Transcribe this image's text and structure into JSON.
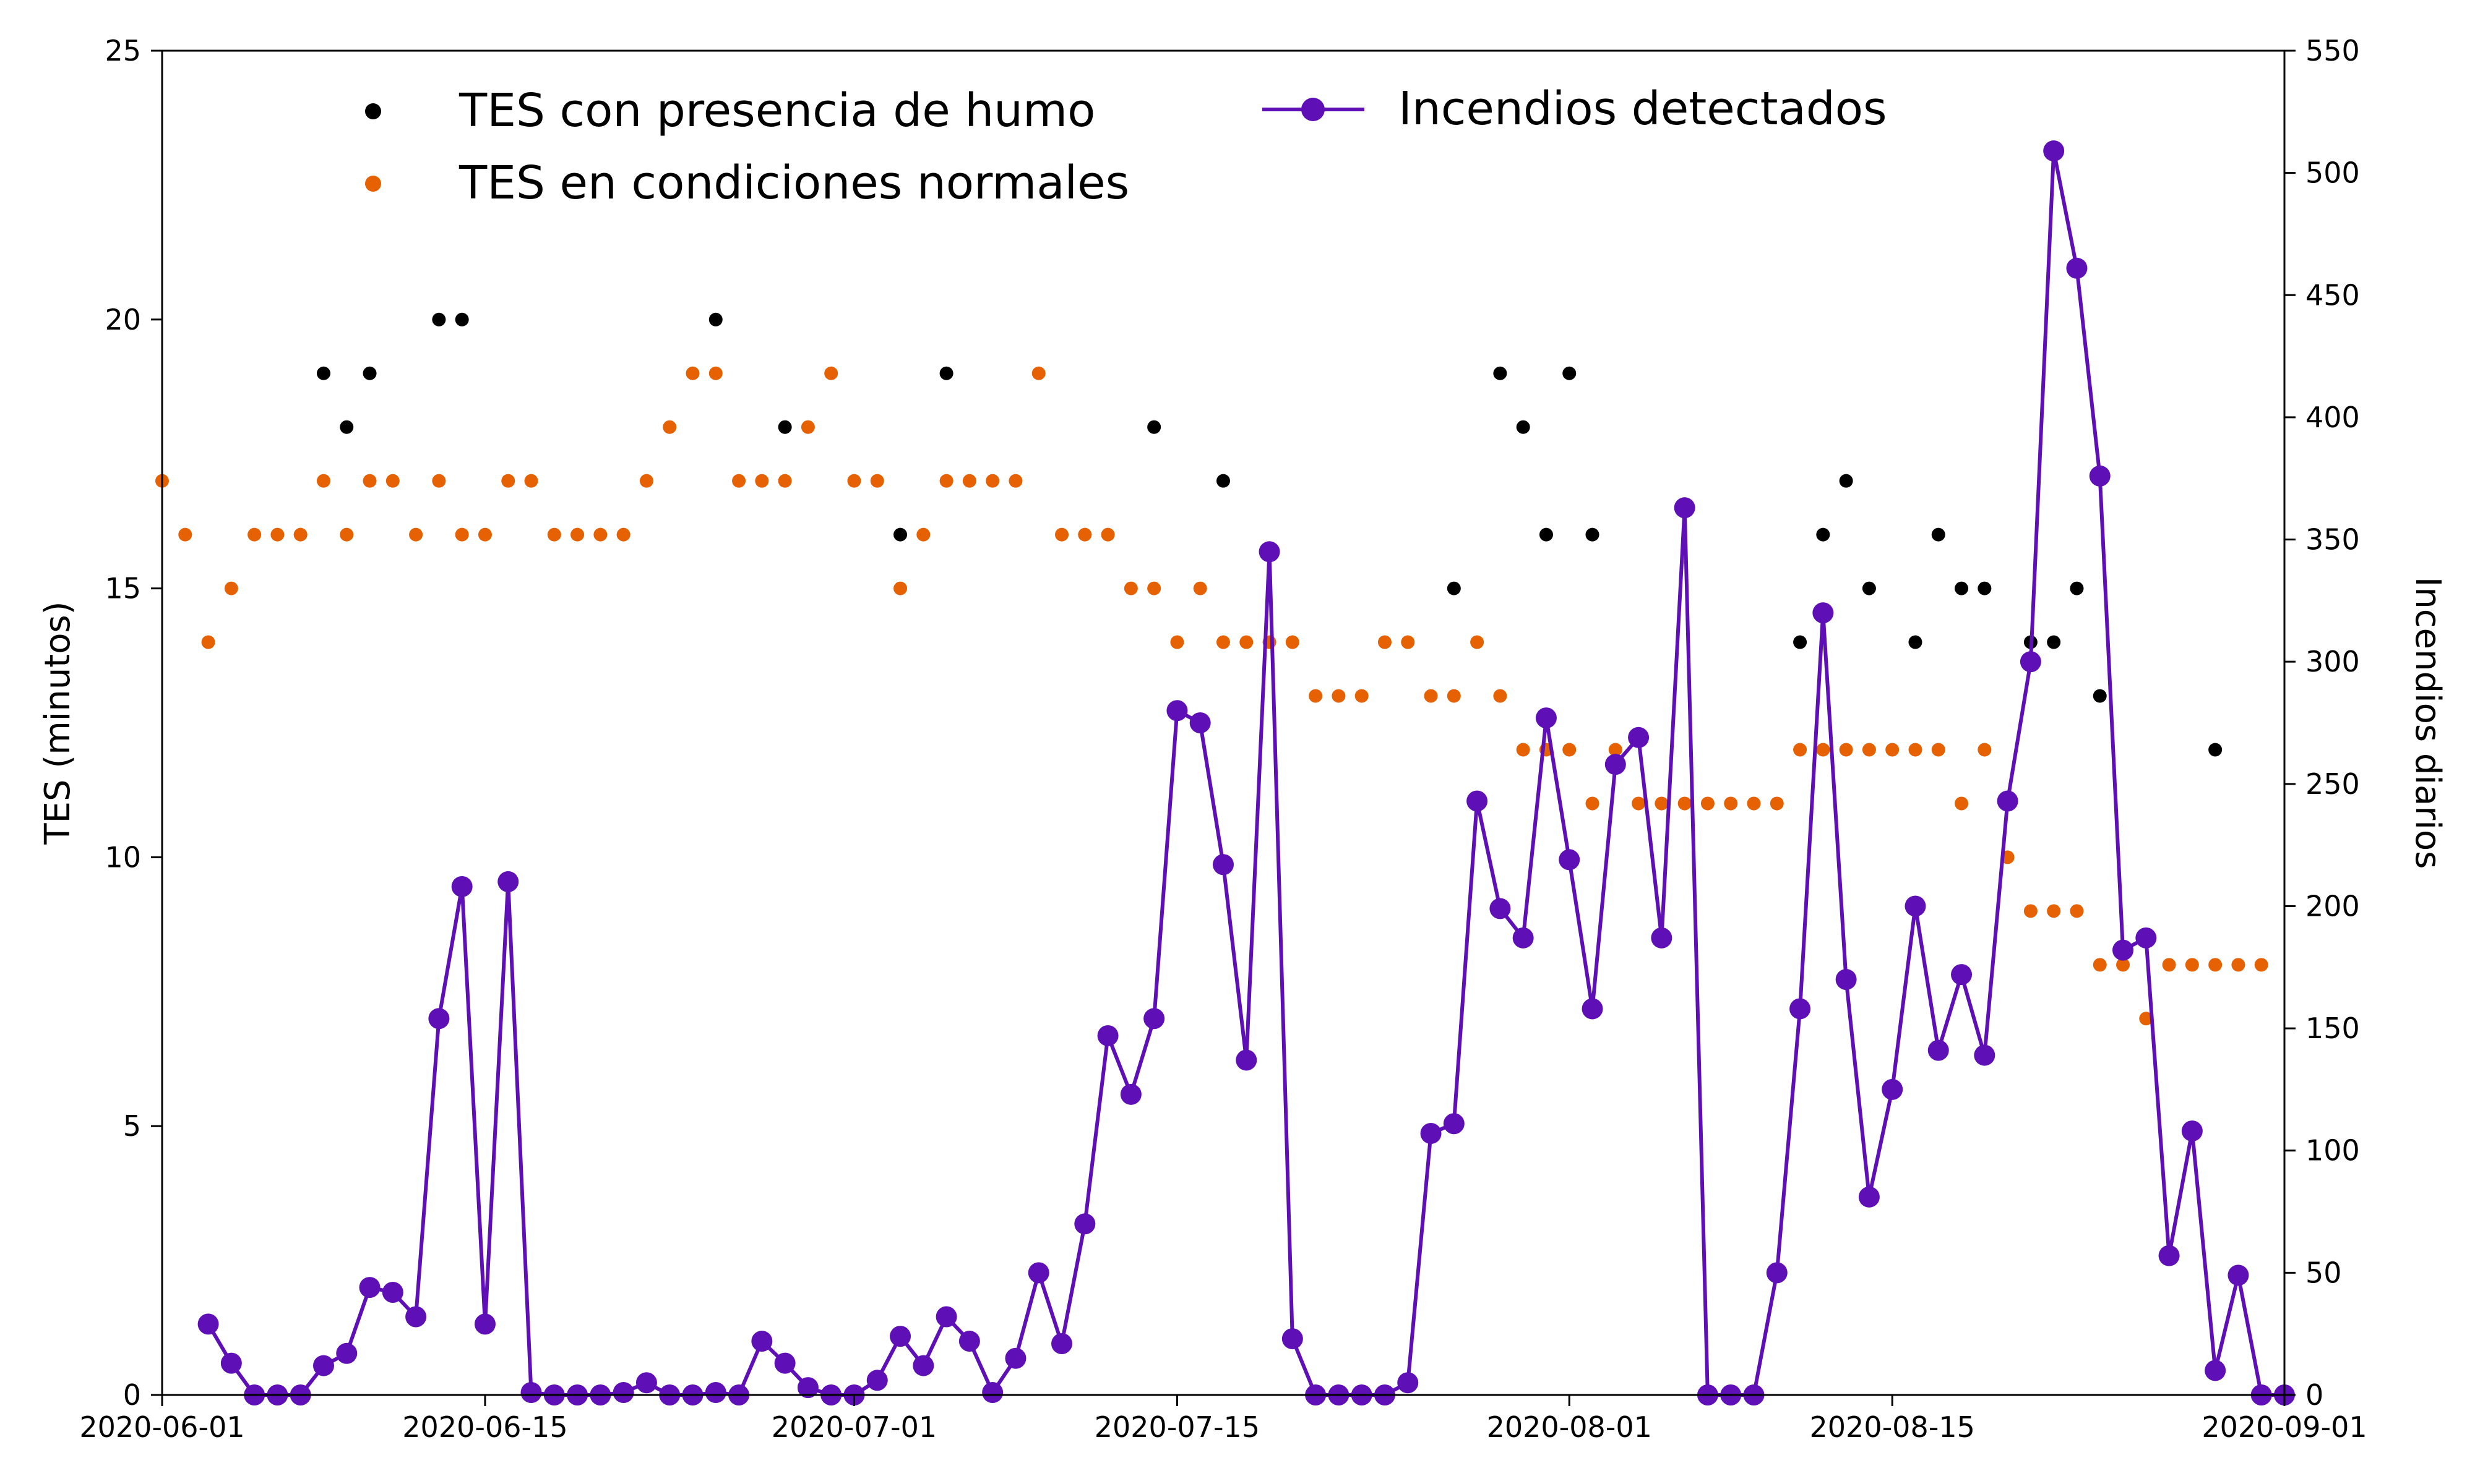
{
  "chart_data": {
    "type": "scatter+line",
    "title": "",
    "x_axis": {
      "type": "date",
      "range": [
        "2020-06-01",
        "2020-09-01"
      ],
      "ticks": [
        "2020-06-01",
        "2020-06-15",
        "2020-07-01",
        "2020-07-15",
        "2020-08-01",
        "2020-08-15",
        "2020-09-01"
      ]
    },
    "y_left": {
      "label": "TES (minutos)",
      "range": [
        0,
        25
      ],
      "ticks": [
        0,
        5,
        10,
        15,
        20,
        25
      ]
    },
    "y_right": {
      "label": "Incendios diarios",
      "range": [
        0,
        550
      ],
      "ticks": [
        0,
        50,
        100,
        150,
        200,
        250,
        300,
        350,
        400,
        450,
        500,
        550
      ]
    },
    "grid": false,
    "legend_position": "top",
    "series": [
      {
        "name": "TES con presencia de humo",
        "kind": "scatter",
        "axis": "left",
        "color": "#000000",
        "points": [
          [
            "2020-06-08",
            19
          ],
          [
            "2020-06-09",
            18
          ],
          [
            "2020-06-10",
            19
          ],
          [
            "2020-06-13",
            20
          ],
          [
            "2020-06-14",
            20
          ],
          [
            "2020-06-25",
            20
          ],
          [
            "2020-06-28",
            18
          ],
          [
            "2020-07-03",
            16
          ],
          [
            "2020-07-05",
            19
          ],
          [
            "2020-07-14",
            18
          ],
          [
            "2020-07-17",
            17
          ],
          [
            "2020-07-27",
            15
          ],
          [
            "2020-07-29",
            19
          ],
          [
            "2020-07-30",
            18
          ],
          [
            "2020-07-31",
            16
          ],
          [
            "2020-08-01",
            19
          ],
          [
            "2020-08-02",
            16
          ],
          [
            "2020-08-11",
            14
          ],
          [
            "2020-08-12",
            16
          ],
          [
            "2020-08-13",
            17
          ],
          [
            "2020-08-14",
            15
          ],
          [
            "2020-08-16",
            14
          ],
          [
            "2020-08-17",
            16
          ],
          [
            "2020-08-18",
            15
          ],
          [
            "2020-08-19",
            15
          ],
          [
            "2020-08-21",
            14
          ],
          [
            "2020-08-22",
            14
          ],
          [
            "2020-08-23",
            15
          ],
          [
            "2020-08-24",
            13
          ],
          [
            "2020-08-29",
            12
          ]
        ]
      },
      {
        "name": "TES en condiciones normales",
        "kind": "scatter",
        "axis": "left",
        "color": "#e66101",
        "points": [
          [
            "2020-06-01",
            17
          ],
          [
            "2020-06-02",
            16
          ],
          [
            "2020-06-03",
            14
          ],
          [
            "2020-06-04",
            15
          ],
          [
            "2020-06-05",
            16
          ],
          [
            "2020-06-06",
            16
          ],
          [
            "2020-06-07",
            16
          ],
          [
            "2020-06-08",
            17
          ],
          [
            "2020-06-09",
            16
          ],
          [
            "2020-06-10",
            17
          ],
          [
            "2020-06-11",
            17
          ],
          [
            "2020-06-12",
            16
          ],
          [
            "2020-06-13",
            17
          ],
          [
            "2020-06-14",
            16
          ],
          [
            "2020-06-15",
            16
          ],
          [
            "2020-06-16",
            17
          ],
          [
            "2020-06-17",
            17
          ],
          [
            "2020-06-18",
            16
          ],
          [
            "2020-06-19",
            16
          ],
          [
            "2020-06-20",
            16
          ],
          [
            "2020-06-21",
            16
          ],
          [
            "2020-06-22",
            17
          ],
          [
            "2020-06-23",
            18
          ],
          [
            "2020-06-24",
            19
          ],
          [
            "2020-06-25",
            19
          ],
          [
            "2020-06-26",
            17
          ],
          [
            "2020-06-27",
            17
          ],
          [
            "2020-06-28",
            17
          ],
          [
            "2020-06-29",
            18
          ],
          [
            "2020-06-30",
            19
          ],
          [
            "2020-07-01",
            17
          ],
          [
            "2020-07-02",
            17
          ],
          [
            "2020-07-03",
            15
          ],
          [
            "2020-07-04",
            16
          ],
          [
            "2020-07-05",
            17
          ],
          [
            "2020-07-06",
            17
          ],
          [
            "2020-07-07",
            17
          ],
          [
            "2020-07-08",
            17
          ],
          [
            "2020-07-09",
            19
          ],
          [
            "2020-07-10",
            16
          ],
          [
            "2020-07-11",
            16
          ],
          [
            "2020-07-12",
            16
          ],
          [
            "2020-07-13",
            15
          ],
          [
            "2020-07-14",
            15
          ],
          [
            "2020-07-15",
            14
          ],
          [
            "2020-07-16",
            15
          ],
          [
            "2020-07-17",
            14
          ],
          [
            "2020-07-18",
            14
          ],
          [
            "2020-07-19",
            14
          ],
          [
            "2020-07-20",
            14
          ],
          [
            "2020-07-21",
            13
          ],
          [
            "2020-07-22",
            13
          ],
          [
            "2020-07-23",
            13
          ],
          [
            "2020-07-24",
            14
          ],
          [
            "2020-07-25",
            14
          ],
          [
            "2020-07-26",
            13
          ],
          [
            "2020-07-27",
            13
          ],
          [
            "2020-07-28",
            14
          ],
          [
            "2020-07-29",
            13
          ],
          [
            "2020-07-30",
            12
          ],
          [
            "2020-07-31",
            12
          ],
          [
            "2020-08-01",
            12
          ],
          [
            "2020-08-02",
            11
          ],
          [
            "2020-08-03",
            12
          ],
          [
            "2020-08-04",
            11
          ],
          [
            "2020-08-05",
            11
          ],
          [
            "2020-08-06",
            11
          ],
          [
            "2020-08-07",
            11
          ],
          [
            "2020-08-08",
            11
          ],
          [
            "2020-08-09",
            11
          ],
          [
            "2020-08-10",
            11
          ],
          [
            "2020-08-11",
            12
          ],
          [
            "2020-08-12",
            12
          ],
          [
            "2020-08-13",
            12
          ],
          [
            "2020-08-14",
            12
          ],
          [
            "2020-08-15",
            12
          ],
          [
            "2020-08-16",
            12
          ],
          [
            "2020-08-17",
            12
          ],
          [
            "2020-08-18",
            11
          ],
          [
            "2020-08-19",
            12
          ],
          [
            "2020-08-20",
            10
          ],
          [
            "2020-08-21",
            9
          ],
          [
            "2020-08-22",
            9
          ],
          [
            "2020-08-23",
            9
          ],
          [
            "2020-08-24",
            8
          ],
          [
            "2020-08-25",
            8
          ],
          [
            "2020-08-26",
            7
          ],
          [
            "2020-08-27",
            8
          ],
          [
            "2020-08-28",
            8
          ],
          [
            "2020-08-29",
            8
          ],
          [
            "2020-08-30",
            8
          ],
          [
            "2020-08-31",
            8
          ]
        ]
      },
      {
        "name": "Incendios detectados",
        "kind": "line",
        "axis": "right",
        "color": "#5e0fb6",
        "points": [
          [
            "2020-06-03",
            29
          ],
          [
            "2020-06-04",
            13
          ],
          [
            "2020-06-05",
            0
          ],
          [
            "2020-06-06",
            0
          ],
          [
            "2020-06-07",
            0
          ],
          [
            "2020-06-08",
            12
          ],
          [
            "2020-06-09",
            17
          ],
          [
            "2020-06-10",
            44
          ],
          [
            "2020-06-11",
            42
          ],
          [
            "2020-06-12",
            32
          ],
          [
            "2020-06-13",
            154
          ],
          [
            "2020-06-14",
            208
          ],
          [
            "2020-06-15",
            29
          ],
          [
            "2020-06-16",
            210
          ],
          [
            "2020-06-17",
            1
          ],
          [
            "2020-06-18",
            0
          ],
          [
            "2020-06-19",
            0
          ],
          [
            "2020-06-20",
            0
          ],
          [
            "2020-06-21",
            1
          ],
          [
            "2020-06-22",
            5
          ],
          [
            "2020-06-23",
            0
          ],
          [
            "2020-06-24",
            0
          ],
          [
            "2020-06-25",
            1
          ],
          [
            "2020-06-26",
            0
          ],
          [
            "2020-06-27",
            22
          ],
          [
            "2020-06-28",
            13
          ],
          [
            "2020-06-29",
            3
          ],
          [
            "2020-06-30",
            0
          ],
          [
            "2020-07-01",
            0
          ],
          [
            "2020-07-02",
            6
          ],
          [
            "2020-07-03",
            24
          ],
          [
            "2020-07-04",
            12
          ],
          [
            "2020-07-05",
            32
          ],
          [
            "2020-07-06",
            22
          ],
          [
            "2020-07-07",
            1
          ],
          [
            "2020-07-08",
            15
          ],
          [
            "2020-07-09",
            50
          ],
          [
            "2020-07-10",
            21
          ],
          [
            "2020-07-11",
            70
          ],
          [
            "2020-07-12",
            147
          ],
          [
            "2020-07-13",
            123
          ],
          [
            "2020-07-14",
            154
          ],
          [
            "2020-07-15",
            280
          ],
          [
            "2020-07-16",
            275
          ],
          [
            "2020-07-17",
            217
          ],
          [
            "2020-07-18",
            137
          ],
          [
            "2020-07-19",
            345
          ],
          [
            "2020-07-20",
            23
          ],
          [
            "2020-07-21",
            0
          ],
          [
            "2020-07-22",
            0
          ],
          [
            "2020-07-23",
            0
          ],
          [
            "2020-07-24",
            0
          ],
          [
            "2020-07-25",
            5
          ],
          [
            "2020-07-26",
            107
          ],
          [
            "2020-07-27",
            111
          ],
          [
            "2020-07-28",
            243
          ],
          [
            "2020-07-29",
            199
          ],
          [
            "2020-07-30",
            187
          ],
          [
            "2020-07-31",
            277
          ],
          [
            "2020-08-01",
            219
          ],
          [
            "2020-08-02",
            158
          ],
          [
            "2020-08-03",
            258
          ],
          [
            "2020-08-04",
            269
          ],
          [
            "2020-08-05",
            187
          ],
          [
            "2020-08-06",
            363
          ],
          [
            "2020-08-07",
            0
          ],
          [
            "2020-08-08",
            0
          ],
          [
            "2020-08-09",
            0
          ],
          [
            "2020-08-10",
            50
          ],
          [
            "2020-08-11",
            158
          ],
          [
            "2020-08-12",
            320
          ],
          [
            "2020-08-13",
            170
          ],
          [
            "2020-08-14",
            81
          ],
          [
            "2020-08-15",
            125
          ],
          [
            "2020-08-16",
            200
          ],
          [
            "2020-08-17",
            141
          ],
          [
            "2020-08-18",
            172
          ],
          [
            "2020-08-19",
            139
          ],
          [
            "2020-08-20",
            243
          ],
          [
            "2020-08-21",
            300
          ],
          [
            "2020-08-22",
            509
          ],
          [
            "2020-08-23",
            461
          ],
          [
            "2020-08-24",
            376
          ],
          [
            "2020-08-25",
            182
          ],
          [
            "2020-08-26",
            187
          ],
          [
            "2020-08-27",
            57
          ],
          [
            "2020-08-28",
            108
          ],
          [
            "2020-08-29",
            10
          ],
          [
            "2020-08-30",
            49
          ],
          [
            "2020-08-31",
            0
          ],
          [
            "2020-09-01",
            0
          ]
        ]
      }
    ]
  }
}
